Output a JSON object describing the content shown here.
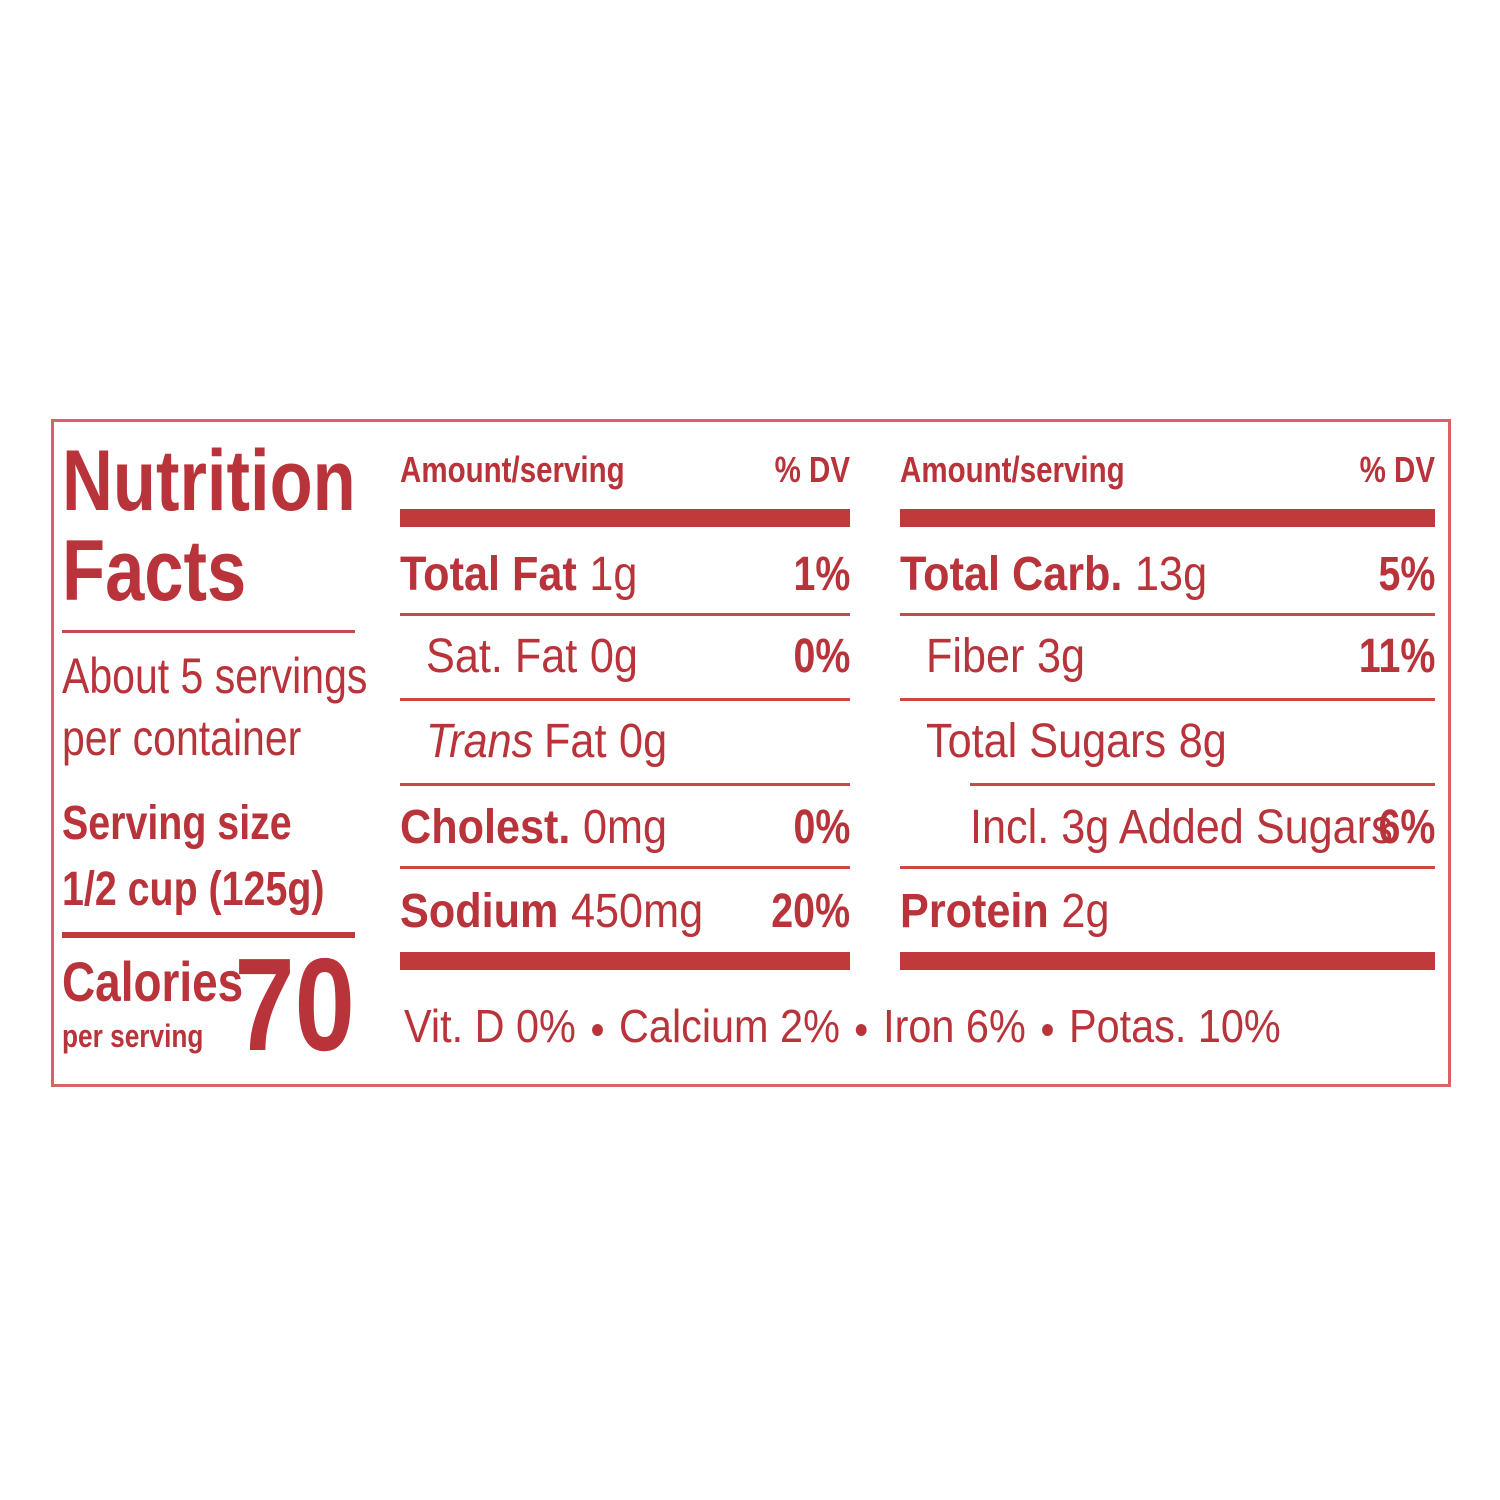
{
  "title": [
    "Nutrition",
    "Facts"
  ],
  "servings": [
    "About 5 servings",
    "per container"
  ],
  "serving_size_label": "Serving size",
  "serving_size": "1/2 cup (125g)",
  "calories_label": "Calories",
  "calories_sub": "per serving",
  "calories": "70",
  "columns": [
    {
      "header": {
        "amount": "Amount/serving",
        "dv": "% DV"
      },
      "rows": [
        {
          "name": "Total Fat",
          "amount": "1g",
          "dv": "1%",
          "bold": true,
          "indent": 0
        },
        {
          "name": "Sat. Fat",
          "amount": "0g",
          "dv": "0%",
          "bold": false,
          "indent": 1
        },
        {
          "name_italic": "Trans",
          "name": "Fat",
          "amount": "0g",
          "bold": false,
          "indent": 1
        },
        {
          "name": "Cholest.",
          "amount": "0mg",
          "dv": "0%",
          "bold": true,
          "indent": 0
        },
        {
          "name": "Sodium",
          "amount": "450mg",
          "dv": "20%",
          "bold": true,
          "indent": 0
        }
      ]
    },
    {
      "header": {
        "amount": "Amount/serving",
        "dv": "% DV"
      },
      "rows": [
        {
          "name": "Total Carb.",
          "amount": "13g",
          "dv": "5%",
          "bold": true,
          "indent": 0
        },
        {
          "name": "Fiber",
          "amount": "3g",
          "dv": "11%",
          "bold": false,
          "indent": 1
        },
        {
          "name": "Total Sugars",
          "amount": "8g",
          "bold": false,
          "indent": 1
        },
        {
          "name": "Incl. 3g Added Sugars",
          "dv": "6%",
          "bold": false,
          "indent": 2
        },
        {
          "name": "Protein",
          "amount": "2g",
          "bold": true,
          "indent": 0
        }
      ]
    }
  ],
  "vitamins": [
    "Vit. D 0%",
    "Calcium 2%",
    "Iron 6%",
    "Potas. 10%"
  ]
}
